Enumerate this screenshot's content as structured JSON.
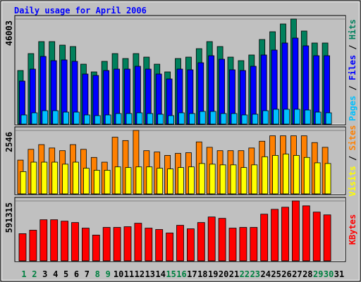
{
  "chart_data": [
    {
      "type": "bar",
      "title": "Daily usage for April 2006",
      "ylim": [
        0,
        46003
      ],
      "yticks": [
        46003
      ],
      "series": [
        {
          "name": "Hits",
          "color": "#00805c",
          "values": [
            23464,
            30874,
            36123,
            36123,
            34579,
            33962,
            26243,
            22847,
            27478,
            30874,
            28713,
            30874,
            29331,
            26243,
            22847,
            28713,
            29331,
            33035,
            36123,
            33962,
            29331,
            27787,
            30257,
            37049,
            40446,
            43841,
            46003,
            40754,
            35505,
            35505,
            null
          ]
        },
        {
          "name": "Files",
          "color": "#0000ff",
          "values": [
            18834,
            24083,
            29640,
            27788,
            28096,
            27479,
            21921,
            21304,
            23465,
            24083,
            24083,
            25318,
            24083,
            21921,
            19760,
            24083,
            23774,
            26861,
            29949,
            28405,
            23774,
            23465,
            25318,
            30258,
            32419,
            35506,
            37668,
            34271,
            29949,
            29949,
            null
          ]
        },
        {
          "name": "Pages",
          "color": "#00c0ff",
          "values": [
            4014,
            4940,
            5866,
            5866,
            5249,
            5249,
            4014,
            3705,
            4014,
            4631,
            4631,
            4940,
            4631,
            4323,
            3705,
            4940,
            4631,
            5558,
            5558,
            4631,
            4631,
            4014,
            4323,
            5866,
            6484,
            6484,
            6484,
            6175,
            5249,
            4940,
            null
          ]
        }
      ]
    },
    {
      "type": "bar",
      "ylim": [
        0,
        2546
      ],
      "yticks": [
        2546
      ],
      "series": [
        {
          "name": "Sites",
          "color": "#ff8000",
          "values": [
            1355,
            1788,
            1977,
            1842,
            1734,
            1977,
            1788,
            1463,
            1273,
            2275,
            2140,
            2546,
            1734,
            1680,
            1544,
            1625,
            1652,
            2086,
            1869,
            1734,
            1734,
            1734,
            1842,
            2113,
            2330,
            2330,
            2330,
            2330,
            2059,
            1869,
            null
          ]
        },
        {
          "name": "Visits",
          "color": "#ffff00",
          "values": [
            894,
            1273,
            1273,
            1273,
            1192,
            1273,
            1029,
            948,
            948,
            1084,
            1057,
            1084,
            1084,
            1029,
            1002,
            1057,
            1084,
            1219,
            1192,
            1165,
            1165,
            1057,
            1165,
            1490,
            1544,
            1598,
            1544,
            1463,
            1246,
            1219,
            null
          ]
        }
      ]
    },
    {
      "type": "bar",
      "ylim": [
        0,
        591315
      ],
      "yticks": [
        591315
      ],
      "categories": [
        "1",
        "2",
        "3",
        "4",
        "5",
        "6",
        "7",
        "8",
        "9",
        "10",
        "11",
        "12",
        "13",
        "14",
        "15",
        "16",
        "17",
        "18",
        "19",
        "20",
        "21",
        "22",
        "23",
        "24",
        "25",
        "26",
        "27",
        "28",
        "29",
        "30",
        "31"
      ],
      "category_colors": [
        "#008040",
        "#008040",
        "#000000",
        "#000000",
        "#000000",
        "#000000",
        "#000000",
        "#008040",
        "#008040",
        "#000000",
        "#000000",
        "#000000",
        "#000000",
        "#000000",
        "#008040",
        "#008040",
        "#000000",
        "#000000",
        "#000000",
        "#000000",
        "#000000",
        "#008040",
        "#008040",
        "#000000",
        "#000000",
        "#000000",
        "#000000",
        "#000000",
        "#008040",
        "#008040",
        "#000000"
      ],
      "series": [
        {
          "name": "KBytes",
          "color": "#ff0000",
          "values": [
            268164,
            302544,
            405684,
            405684,
            391932,
            378180,
            323172,
            254412,
            330048,
            330048,
            336924,
            371304,
            323172,
            309420,
            275040,
            350676,
            316296,
            378180,
            433188,
            419436,
            323172,
            330048,
            330048,
            460692,
            508824,
            529452,
            591315,
            543204,
            481320,
            453816,
            null
          ]
        }
      ]
    }
  ]
}
